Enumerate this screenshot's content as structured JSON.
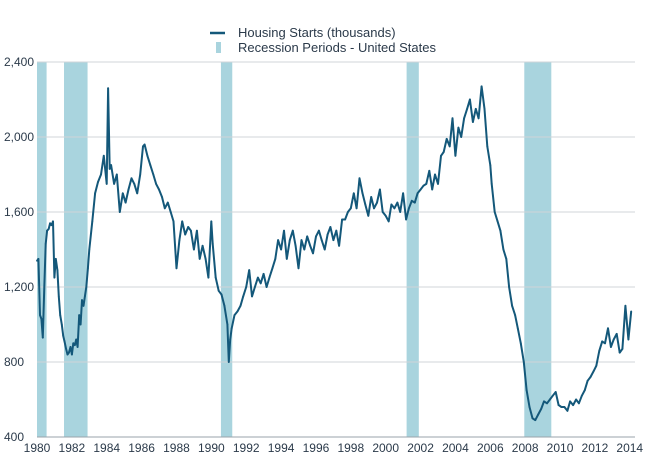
{
  "colors": {
    "line": "#14587a",
    "recession": "#a9d4de",
    "grid": "#d0d4d8",
    "text": "#2b3a4a"
  },
  "chart_data": {
    "type": "line",
    "title": "",
    "xlabel": "",
    "ylabel": "",
    "xlim": [
      1980,
      2014.3
    ],
    "ylim": [
      400,
      2400
    ],
    "yticks": [
      400,
      800,
      1200,
      1600,
      2000,
      2400
    ],
    "ytick_labels": [
      "400",
      "800",
      "1,200",
      "1,600",
      "2,000",
      "2,400"
    ],
    "xticks": [
      1980,
      1982,
      1984,
      1986,
      1988,
      1990,
      1992,
      1994,
      1996,
      1998,
      2000,
      2002,
      2004,
      2006,
      2008,
      2010,
      2012,
      2014
    ],
    "xtick_labels": [
      "1980",
      "1982",
      "1984",
      "1986",
      "1988",
      "1990",
      "1992",
      "1994",
      "1996",
      "1998",
      "2000",
      "2002",
      "2004",
      "2006",
      "2008",
      "2010",
      "2012",
      "2014"
    ],
    "grid": "horizontal",
    "legend_position": "top",
    "legend": [
      {
        "label": "Housing Starts (thousands)",
        "kind": "line"
      },
      {
        "label": "Recession Periods - United States",
        "kind": "bar"
      }
    ],
    "recessions": [
      [
        1980.0,
        1980.55
      ],
      [
        1981.55,
        1982.9
      ],
      [
        1990.55,
        1991.2
      ],
      [
        2001.2,
        2001.9
      ],
      [
        2007.95,
        2009.5
      ]
    ],
    "series": [
      {
        "name": "Housing Starts (thousands)",
        "x": [
          1980.0,
          1980.08,
          1980.17,
          1980.25,
          1980.33,
          1980.42,
          1980.5,
          1980.58,
          1980.67,
          1980.75,
          1980.83,
          1980.92,
          1981.0,
          1981.08,
          1981.17,
          1981.25,
          1981.33,
          1981.42,
          1981.5,
          1981.58,
          1981.67,
          1981.75,
          1981.83,
          1981.92,
          1982.0,
          1982.08,
          1982.17,
          1982.25,
          1982.33,
          1982.42,
          1982.5,
          1982.58,
          1982.67,
          1982.75,
          1982.83,
          1982.92,
          1983.0,
          1983.17,
          1983.33,
          1983.5,
          1983.67,
          1983.83,
          1984.0,
          1984.08,
          1984.17,
          1984.25,
          1984.42,
          1984.58,
          1984.75,
          1984.92,
          1985.08,
          1985.25,
          1985.42,
          1985.58,
          1985.75,
          1985.92,
          1986.08,
          1986.17,
          1986.33,
          1986.5,
          1986.67,
          1986.83,
          1987.0,
          1987.17,
          1987.33,
          1987.5,
          1987.67,
          1987.83,
          1988.0,
          1988.17,
          1988.33,
          1988.5,
          1988.67,
          1988.83,
          1989.0,
          1989.17,
          1989.33,
          1989.5,
          1989.67,
          1989.83,
          1990.0,
          1990.08,
          1990.25,
          1990.42,
          1990.58,
          1990.75,
          1990.92,
          1991.0,
          1991.08,
          1991.17,
          1991.33,
          1991.5,
          1991.67,
          1991.83,
          1992.0,
          1992.17,
          1992.33,
          1992.5,
          1992.67,
          1992.83,
          1993.0,
          1993.17,
          1993.33,
          1993.5,
          1993.67,
          1993.83,
          1994.0,
          1994.17,
          1994.33,
          1994.5,
          1994.67,
          1994.83,
          1995.0,
          1995.17,
          1995.33,
          1995.5,
          1995.67,
          1995.83,
          1996.0,
          1996.17,
          1996.33,
          1996.5,
          1996.67,
          1996.83,
          1997.0,
          1997.17,
          1997.33,
          1997.5,
          1997.67,
          1997.83,
          1998.0,
          1998.17,
          1998.33,
          1998.5,
          1998.67,
          1998.83,
          1999.0,
          1999.17,
          1999.33,
          1999.5,
          1999.67,
          1999.83,
          2000.0,
          2000.17,
          2000.33,
          2000.5,
          2000.67,
          2000.83,
          2001.0,
          2001.17,
          2001.33,
          2001.5,
          2001.67,
          2001.83,
          2002.0,
          2002.17,
          2002.33,
          2002.5,
          2002.67,
          2002.83,
          2003.0,
          2003.17,
          2003.33,
          2003.5,
          2003.67,
          2003.83,
          2004.0,
          2004.17,
          2004.33,
          2004.5,
          2004.67,
          2004.83,
          2005.0,
          2005.17,
          2005.33,
          2005.5,
          2005.67,
          2005.83,
          2006.0,
          2006.08,
          2006.25,
          2006.42,
          2006.58,
          2006.75,
          2006.92,
          2007.08,
          2007.25,
          2007.42,
          2007.58,
          2007.75,
          2007.92,
          2008.08,
          2008.25,
          2008.42,
          2008.58,
          2008.75,
          2008.92,
          2009.08,
          2009.25,
          2009.42,
          2009.58,
          2009.75,
          2009.92,
          2010.08,
          2010.25,
          2010.42,
          2010.58,
          2010.75,
          2010.92,
          2011.08,
          2011.25,
          2011.42,
          2011.58,
          2011.75,
          2011.92,
          2012.08,
          2012.25,
          2012.42,
          2012.58,
          2012.75,
          2012.92,
          2013.08,
          2013.25,
          2013.42,
          2013.58,
          2013.75,
          2013.92,
          2014.08
        ],
        "values": [
          1340,
          1350,
          1050,
          1030,
          930,
          1200,
          1430,
          1500,
          1510,
          1540,
          1530,
          1550,
          1250,
          1350,
          1290,
          1150,
          1050,
          1000,
          940,
          910,
          870,
          840,
          850,
          880,
          840,
          900,
          890,
          920,
          880,
          1050,
          1000,
          1130,
          1100,
          1150,
          1200,
          1300,
          1400,
          1550,
          1700,
          1760,
          1800,
          1900,
          1750,
          2260,
          1830,
          1850,
          1750,
          1800,
          1600,
          1700,
          1650,
          1720,
          1780,
          1750,
          1700,
          1800,
          1950,
          1960,
          1900,
          1850,
          1800,
          1750,
          1720,
          1680,
          1620,
          1650,
          1600,
          1550,
          1300,
          1450,
          1550,
          1480,
          1520,
          1500,
          1400,
          1500,
          1350,
          1420,
          1350,
          1250,
          1550,
          1430,
          1250,
          1180,
          1160,
          1100,
          1000,
          800,
          920,
          980,
          1050,
          1070,
          1100,
          1150,
          1200,
          1290,
          1150,
          1200,
          1250,
          1220,
          1270,
          1200,
          1250,
          1300,
          1350,
          1450,
          1400,
          1500,
          1350,
          1450,
          1500,
          1420,
          1300,
          1450,
          1400,
          1470,
          1420,
          1380,
          1470,
          1500,
          1450,
          1400,
          1480,
          1520,
          1450,
          1500,
          1420,
          1560,
          1560,
          1600,
          1620,
          1700,
          1620,
          1780,
          1700,
          1640,
          1580,
          1680,
          1620,
          1650,
          1720,
          1600,
          1580,
          1550,
          1640,
          1620,
          1650,
          1600,
          1700,
          1560,
          1620,
          1660,
          1650,
          1700,
          1720,
          1740,
          1750,
          1820,
          1720,
          1800,
          1750,
          1900,
          1920,
          1990,
          1950,
          2100,
          1900,
          2050,
          2000,
          2100,
          2150,
          2200,
          2080,
          2150,
          2100,
          2270,
          2150,
          1950,
          1850,
          1750,
          1600,
          1550,
          1500,
          1400,
          1350,
          1200,
          1100,
          1050,
          980,
          900,
          800,
          650,
          560,
          500,
          490,
          520,
          550,
          590,
          580,
          600,
          620,
          640,
          570,
          560,
          560,
          540,
          590,
          570,
          600,
          580,
          620,
          650,
          700,
          720,
          750,
          780,
          860,
          910,
          900,
          980,
          880,
          920,
          950,
          850,
          870,
          1100,
          920,
          1070
        ]
      }
    ]
  }
}
